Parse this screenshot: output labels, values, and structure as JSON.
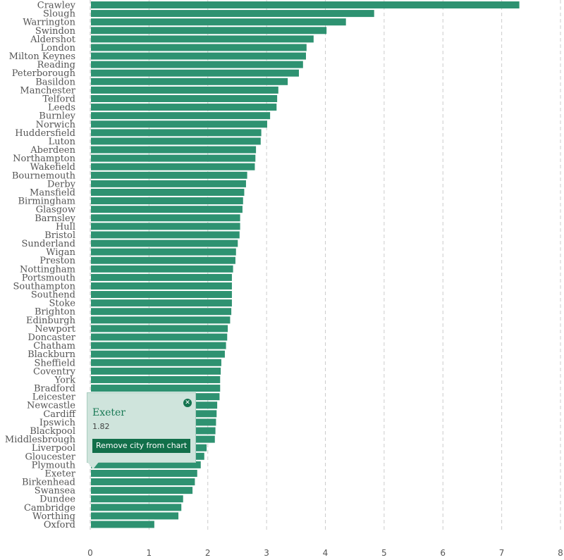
{
  "chart_data": {
    "type": "bar",
    "orientation": "horizontal",
    "title": "",
    "xlabel": "",
    "ylabel": "",
    "xlim": [
      0,
      8
    ],
    "ticks": [
      "0",
      "1",
      "2",
      "3",
      "4",
      "5",
      "6",
      "7",
      "8"
    ],
    "grid": true,
    "categories": [
      "Crawley",
      "Slough",
      "Warrington",
      "Swindon",
      "Aldershot",
      "London",
      "Milton Keynes",
      "Reading",
      "Peterborough",
      "Basildon",
      "Manchester",
      "Telford",
      "Leeds",
      "Burnley",
      "Norwich",
      "Huddersfield",
      "Luton",
      "Aberdeen",
      "Northampton",
      "Wakefield",
      "Bournemouth",
      "Derby",
      "Mansfield",
      "Birmingham",
      "Glasgow",
      "Barnsley",
      "Hull",
      "Bristol",
      "Sunderland",
      "Wigan",
      "Preston",
      "Nottingham",
      "Portsmouth",
      "Southampton",
      "Southend",
      "Stoke",
      "Brighton",
      "Edinburgh",
      "Newport",
      "Doncaster",
      "Chatham",
      "Blackburn",
      "Sheffield",
      "Coventry",
      "York",
      "Bradford",
      "Leicester",
      "Newcastle",
      "Cardiff",
      "Ipswich",
      "Blackpool",
      "Middlesbrough",
      "Liverpool",
      "Gloucester",
      "Plymouth",
      "Exeter",
      "Birkenhead",
      "Swansea",
      "Dundee",
      "Cambridge",
      "Worthing",
      "Oxford"
    ],
    "values": [
      7.3,
      4.83,
      4.35,
      4.02,
      3.8,
      3.68,
      3.67,
      3.62,
      3.55,
      3.36,
      3.2,
      3.18,
      3.17,
      3.06,
      3.01,
      2.91,
      2.9,
      2.82,
      2.81,
      2.8,
      2.67,
      2.65,
      2.62,
      2.6,
      2.59,
      2.55,
      2.55,
      2.54,
      2.51,
      2.48,
      2.47,
      2.43,
      2.41,
      2.41,
      2.41,
      2.41,
      2.4,
      2.38,
      2.34,
      2.33,
      2.31,
      2.29,
      2.23,
      2.22,
      2.21,
      2.21,
      2.2,
      2.16,
      2.15,
      2.14,
      2.13,
      2.12,
      1.98,
      1.94,
      1.88,
      1.82,
      1.78,
      1.74,
      1.58,
      1.55,
      1.5,
      1.09
    ],
    "bar_color": "#2e9271",
    "grid_color": "#cccccc"
  },
  "tooltip": {
    "city": "Exeter",
    "value": "1.82",
    "remove_label": "Remove city from chart",
    "close_icon": "close-icon",
    "background": "#cfe4dc",
    "button_color": "#126f4a",
    "accent": "#1a7a56"
  }
}
